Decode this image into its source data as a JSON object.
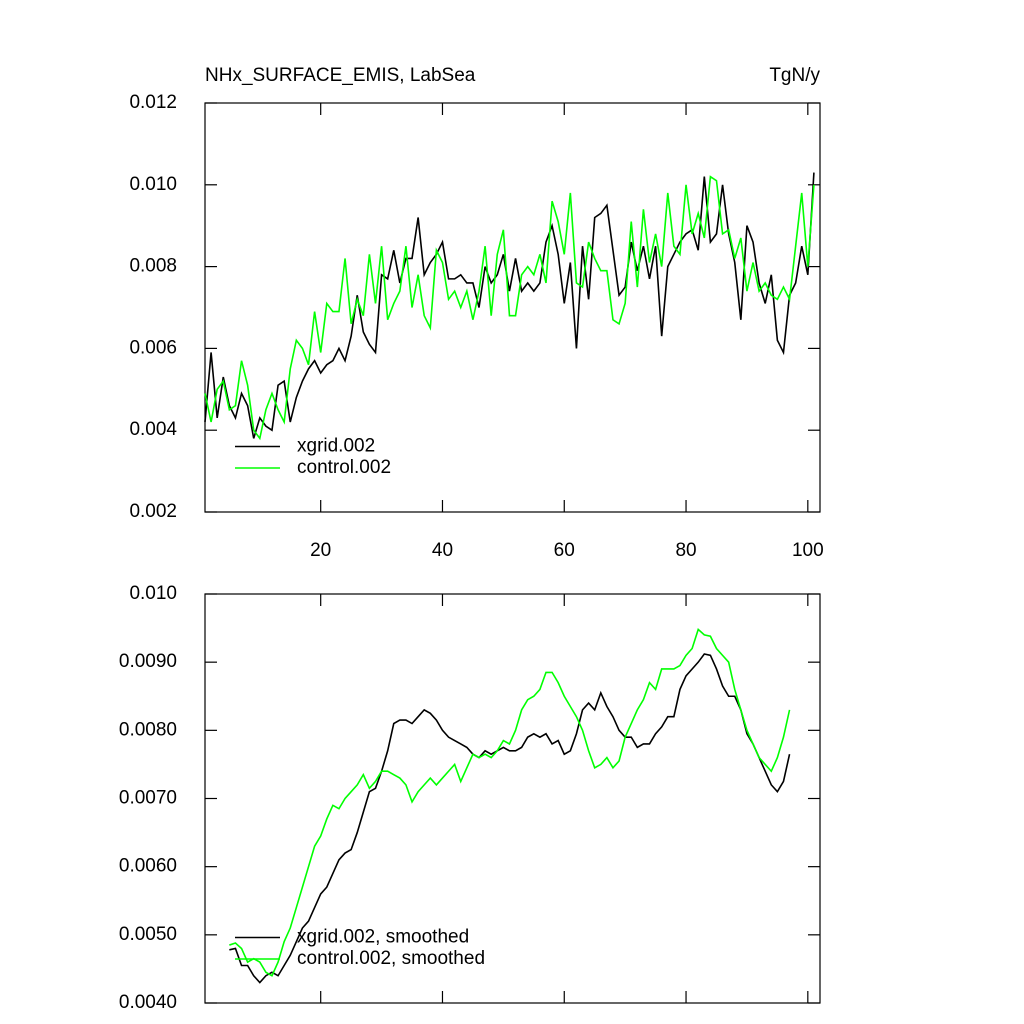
{
  "chart_data": [
    {
      "type": "line",
      "title": "NHx_SURFACE_EMIS, LabSea",
      "units": "TgN/y",
      "xlim": [
        1,
        102
      ],
      "ylim": [
        0.002,
        0.012
      ],
      "xticks": [
        20,
        40,
        60,
        80,
        100
      ],
      "yticks": [
        0.002,
        0.004,
        0.006,
        0.008,
        {
          "value": 0.01,
          "label": "0.010"
        },
        0.012
      ],
      "legend": "lower left",
      "x": [
        1,
        2,
        3,
        4,
        5,
        6,
        7,
        8,
        9,
        10,
        11,
        12,
        13,
        14,
        15,
        16,
        17,
        18,
        19,
        20,
        21,
        22,
        23,
        24,
        25,
        26,
        27,
        28,
        29,
        30,
        31,
        32,
        33,
        34,
        35,
        36,
        37,
        38,
        39,
        40,
        41,
        42,
        43,
        44,
        45,
        46,
        47,
        48,
        49,
        50,
        51,
        52,
        53,
        54,
        55,
        56,
        57,
        58,
        59,
        60,
        61,
        62,
        63,
        64,
        65,
        66,
        67,
        68,
        69,
        70,
        71,
        72,
        73,
        74,
        75,
        76,
        77,
        78,
        79,
        80,
        81,
        82,
        83,
        84,
        85,
        86,
        87,
        88,
        89,
        90,
        91,
        92,
        93,
        94,
        95,
        96,
        97,
        98,
        99,
        100,
        101
      ],
      "series": [
        {
          "name": "xgrid.002",
          "color": "#000000",
          "values": [
            0.0042,
            0.0059,
            0.0043,
            0.0053,
            0.0046,
            0.0043,
            0.0049,
            0.0046,
            0.0038,
            0.0043,
            0.0041,
            0.004,
            0.0051,
            0.0052,
            0.0042,
            0.0048,
            0.0052,
            0.0055,
            0.0057,
            0.0054,
            0.0056,
            0.0057,
            0.006,
            0.0057,
            0.0063,
            0.0073,
            0.0064,
            0.0061,
            0.0059,
            0.0078,
            0.0077,
            0.0084,
            0.0076,
            0.0082,
            0.0082,
            0.0092,
            0.0078,
            0.0081,
            0.0083,
            0.0086,
            0.0077,
            0.0077,
            0.0078,
            0.0076,
            0.0076,
            0.007,
            0.008,
            0.0076,
            0.0078,
            0.0083,
            0.0074,
            0.0082,
            0.0074,
            0.0076,
            0.0074,
            0.0076,
            0.0086,
            0.009,
            0.0083,
            0.0071,
            0.0081,
            0.006,
            0.0085,
            0.0072,
            0.0092,
            0.0093,
            0.0095,
            0.0084,
            0.0073,
            0.0075,
            0.0086,
            0.0079,
            0.0085,
            0.0077,
            0.0085,
            0.0063,
            0.008,
            0.0083,
            0.0086,
            0.0088,
            0.0089,
            0.0084,
            0.0102,
            0.0086,
            0.0088,
            0.01,
            0.0088,
            0.0081,
            0.0067,
            0.009,
            0.0086,
            0.0076,
            0.0071,
            0.0078,
            0.0062,
            0.0059,
            0.0073,
            0.0076,
            0.0085,
            0.0078,
            0.0103
          ]
        },
        {
          "name": "control.002",
          "color": "#00ff00",
          "values": [
            0.0049,
            0.0042,
            0.005,
            0.0052,
            0.0045,
            0.0046,
            0.0057,
            0.0051,
            0.004,
            0.0038,
            0.0045,
            0.0049,
            0.0045,
            0.0042,
            0.0055,
            0.0062,
            0.006,
            0.0056,
            0.0069,
            0.0059,
            0.0071,
            0.0069,
            0.0069,
            0.0082,
            0.0066,
            0.0072,
            0.0068,
            0.0083,
            0.0071,
            0.0085,
            0.0067,
            0.0071,
            0.0074,
            0.0085,
            0.007,
            0.0078,
            0.0068,
            0.0065,
            0.0084,
            0.0081,
            0.0072,
            0.0074,
            0.007,
            0.0074,
            0.0067,
            0.0074,
            0.0085,
            0.0068,
            0.0083,
            0.0089,
            0.0068,
            0.0068,
            0.0078,
            0.008,
            0.0078,
            0.0083,
            0.0076,
            0.0096,
            0.0091,
            0.0083,
            0.0098,
            0.0076,
            0.0075,
            0.0086,
            0.0082,
            0.0079,
            0.0079,
            0.0067,
            0.0066,
            0.0071,
            0.0091,
            0.0075,
            0.0094,
            0.0081,
            0.0088,
            0.008,
            0.0098,
            0.0085,
            0.0083,
            0.01,
            0.0088,
            0.0093,
            0.0087,
            0.0102,
            0.0101,
            0.0088,
            0.0089,
            0.0082,
            0.0087,
            0.0074,
            0.0081,
            0.0074,
            0.0076,
            0.0073,
            0.0072,
            0.0075,
            0.0072,
            0.0085,
            0.0098,
            0.008,
            0.01
          ]
        }
      ]
    },
    {
      "type": "line",
      "xlim": [
        1,
        102
      ],
      "ylim": [
        0.004,
        0.01
      ],
      "yticks": [
        {
          "value": 0.004,
          "label": "0.0040"
        },
        {
          "value": 0.005,
          "label": "0.0050"
        },
        {
          "value": 0.006,
          "label": "0.0060"
        },
        {
          "value": 0.007,
          "label": "0.0070"
        },
        {
          "value": 0.008,
          "label": "0.0080"
        },
        {
          "value": 0.009,
          "label": "0.0090"
        },
        {
          "value": 0.01,
          "label": "0.010"
        }
      ],
      "legend": "lower left",
      "x": [
        5,
        6,
        7,
        8,
        9,
        10,
        11,
        12,
        13,
        14,
        15,
        16,
        17,
        18,
        19,
        20,
        21,
        22,
        23,
        24,
        25,
        26,
        27,
        28,
        29,
        30,
        31,
        32,
        33,
        34,
        35,
        36,
        37,
        38,
        39,
        40,
        41,
        42,
        43,
        44,
        45,
        46,
        47,
        48,
        49,
        50,
        51,
        52,
        53,
        54,
        55,
        56,
        57,
        58,
        59,
        60,
        61,
        62,
        63,
        64,
        65,
        66,
        67,
        68,
        69,
        70,
        71,
        72,
        73,
        74,
        75,
        76,
        77,
        78,
        79,
        80,
        81,
        82,
        83,
        84,
        85,
        86,
        87,
        88,
        89,
        90,
        91,
        92,
        93,
        94,
        95,
        96,
        97
      ],
      "series": [
        {
          "name": "xgrid.002, smoothed",
          "color": "#000000",
          "values": [
            0.00478,
            0.0048,
            0.00455,
            0.00455,
            0.0044,
            0.0043,
            0.0044,
            0.00445,
            0.0044,
            0.00455,
            0.0047,
            0.0049,
            0.0051,
            0.0052,
            0.0054,
            0.0056,
            0.0057,
            0.0059,
            0.0061,
            0.0062,
            0.00625,
            0.0065,
            0.0068,
            0.0071,
            0.00715,
            0.0074,
            0.0077,
            0.0081,
            0.00815,
            0.00815,
            0.0081,
            0.0082,
            0.0083,
            0.00825,
            0.00815,
            0.008,
            0.0079,
            0.00785,
            0.0078,
            0.00775,
            0.00765,
            0.0076,
            0.0077,
            0.00765,
            0.0077,
            0.00775,
            0.0077,
            0.0077,
            0.00775,
            0.0079,
            0.00795,
            0.0079,
            0.00795,
            0.0078,
            0.00785,
            0.00765,
            0.0077,
            0.00795,
            0.0083,
            0.0084,
            0.0083,
            0.00855,
            0.00835,
            0.0082,
            0.008,
            0.0079,
            0.0079,
            0.00775,
            0.0078,
            0.0078,
            0.00795,
            0.00805,
            0.0082,
            0.0082,
            0.0086,
            0.0088,
            0.0089,
            0.009,
            0.00912,
            0.0091,
            0.0089,
            0.00865,
            0.0085,
            0.0085,
            0.0083,
            0.00795,
            0.0078,
            0.0076,
            0.0074,
            0.0072,
            0.0071,
            0.00725,
            0.00765
          ]
        },
        {
          "name": "control.002, smoothed",
          "color": "#00ff00",
          "values": [
            0.00485,
            0.00488,
            0.0048,
            0.0046,
            0.00465,
            0.0046,
            0.00445,
            0.0044,
            0.0046,
            0.0049,
            0.0051,
            0.0054,
            0.0057,
            0.006,
            0.0063,
            0.00645,
            0.0067,
            0.0069,
            0.00685,
            0.007,
            0.0071,
            0.0072,
            0.00735,
            0.00715,
            0.00725,
            0.0074,
            0.0074,
            0.00735,
            0.0073,
            0.0072,
            0.00695,
            0.0071,
            0.0072,
            0.0073,
            0.0072,
            0.0073,
            0.0074,
            0.0075,
            0.00725,
            0.00745,
            0.00765,
            0.0076,
            0.00765,
            0.0076,
            0.0077,
            0.00785,
            0.0078,
            0.008,
            0.0083,
            0.00845,
            0.0085,
            0.0086,
            0.00885,
            0.00885,
            0.0087,
            0.0085,
            0.00835,
            0.0082,
            0.008,
            0.0077,
            0.00745,
            0.0075,
            0.0076,
            0.00745,
            0.00755,
            0.0079,
            0.0081,
            0.0083,
            0.00845,
            0.0087,
            0.0086,
            0.0089,
            0.0089,
            0.0089,
            0.00895,
            0.0091,
            0.0092,
            0.00948,
            0.0094,
            0.00938,
            0.0092,
            0.0091,
            0.009,
            0.0086,
            0.0083,
            0.008,
            0.0078,
            0.0076,
            0.0075,
            0.0074,
            0.0076,
            0.0079,
            0.0083
          ]
        }
      ]
    }
  ]
}
